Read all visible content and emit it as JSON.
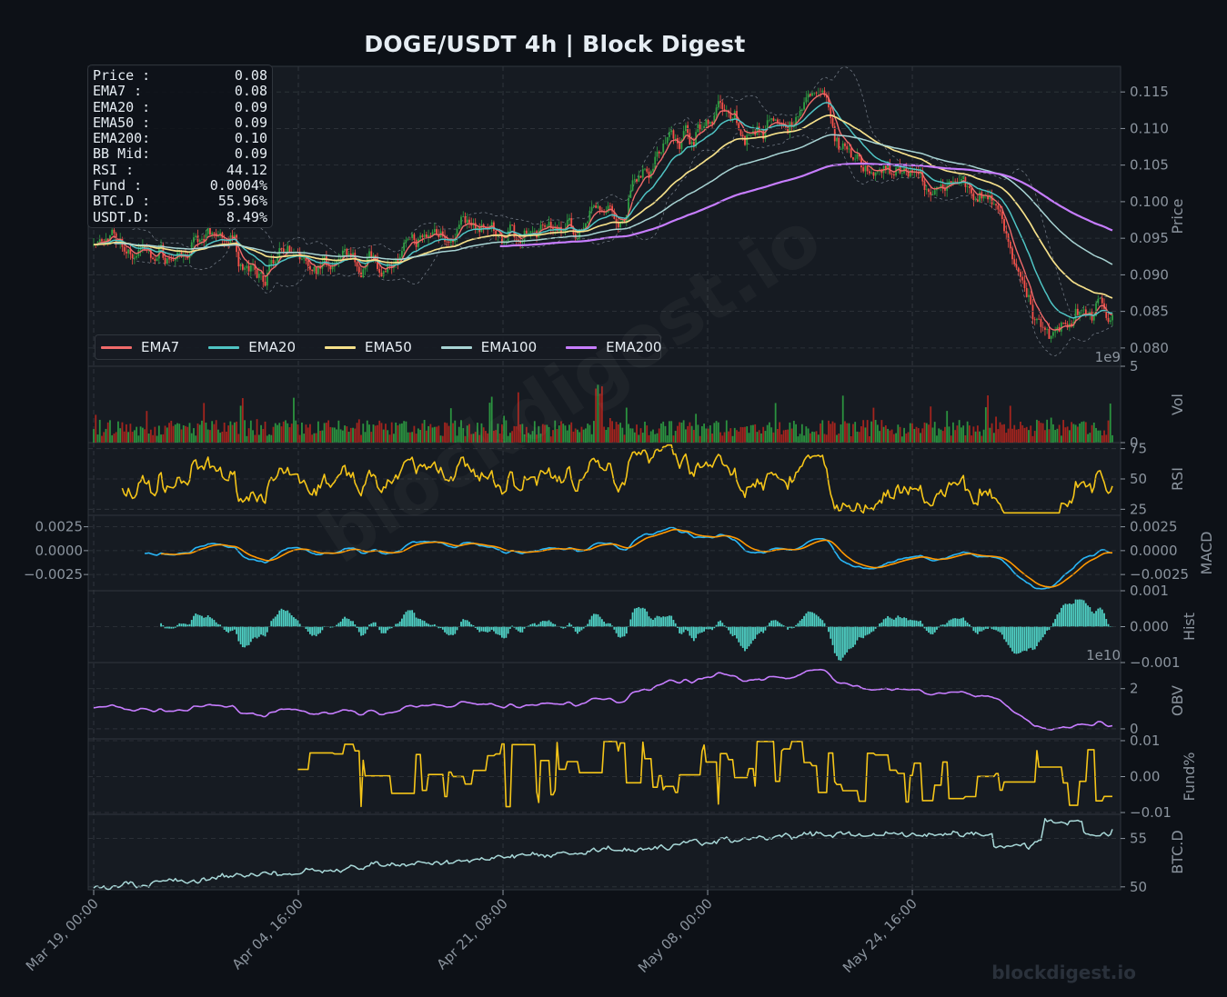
{
  "title": "DOGE/USDT  4h  |  Block Digest",
  "watermark": "blockdigest.io",
  "brand": "blockdigest.io",
  "info_box": [
    {
      "label": "Price :",
      "value": "0.08"
    },
    {
      "label": "EMA7  :",
      "value": "0.08"
    },
    {
      "label": "EMA20 :",
      "value": "0.09"
    },
    {
      "label": "EMA50 :",
      "value": "0.09"
    },
    {
      "label": "EMA200:",
      "value": "0.10"
    },
    {
      "label": "BB Mid:",
      "value": "0.09"
    },
    {
      "label": "RSI   :",
      "value": "44.12"
    },
    {
      "label": "Fund  :",
      "value": "0.0004%"
    },
    {
      "label": "BTC.D :",
      "value": "55.96%"
    },
    {
      "label": "USDT.D:",
      "value": "8.49%"
    }
  ],
  "legend": [
    {
      "name": "EMA7",
      "color": "#f06a6a"
    },
    {
      "name": "EMA20",
      "color": "#4fc4c4"
    },
    {
      "name": "EMA50",
      "color": "#f5e08a"
    },
    {
      "name": "EMA100",
      "color": "#a8d4d4"
    },
    {
      "name": "EMA200",
      "color": "#c77dff"
    }
  ],
  "colors": {
    "background": "#0d1117",
    "panel": "#161b22",
    "grid": "#30363d",
    "text": "#8b949e",
    "candle_up": "#2ea043",
    "candle_down": "#f85149",
    "rsi": "#f5c518",
    "macd": "#29b6f6",
    "signal": "#ff9800",
    "hist": "#4fd1c5",
    "obv": "#c77dff",
    "fund": "#f5c518",
    "btcd": "#a8d8d8"
  },
  "chart_data": {
    "type": "line",
    "x_ticks": [
      "Mar 19, 00:00",
      "Apr 04, 16:00",
      "Apr 21, 08:00",
      "May 08, 00:00",
      "May 24, 16:00"
    ],
    "x_range": [
      "Mar 19, 00:00",
      "Jun 10, 00:00"
    ],
    "panels": [
      {
        "name": "price",
        "ylabel": "Price",
        "ylim": [
          0.0775,
          0.1185
        ],
        "yticks": [
          "0.080",
          "0.085",
          "0.090",
          "0.095",
          "0.100",
          "0.105",
          "0.110",
          "0.115"
        ],
        "anchors": [
          [
            0,
            0.0945
          ],
          [
            4,
            0.093
          ],
          [
            8,
            0.0925
          ],
          [
            11,
            0.094
          ],
          [
            13,
            0.095
          ],
          [
            15,
            0.0915
          ],
          [
            20,
            0.091
          ],
          [
            25,
            0.0915
          ],
          [
            30,
            0.0922
          ],
          [
            33,
            0.0948
          ],
          [
            36,
            0.0975
          ],
          [
            38,
            0.095
          ],
          [
            42,
            0.0955
          ],
          [
            47,
            0.097
          ],
          [
            50,
            0.0975
          ],
          [
            52,
            0.098
          ],
          [
            53,
            0.1045
          ],
          [
            55,
            0.1065
          ],
          [
            57,
            0.109
          ],
          [
            60,
            0.11
          ],
          [
            61.5,
            0.1145
          ],
          [
            63.5,
            0.1095
          ],
          [
            66,
            0.1095
          ],
          [
            68,
            0.11
          ],
          [
            70.5,
            0.115
          ],
          [
            72,
            0.112
          ],
          [
            74,
            0.106
          ],
          [
            76,
            0.104
          ],
          [
            78,
            0.105
          ],
          [
            80,
            0.1025
          ],
          [
            83,
            0.1015
          ],
          [
            86,
            0.1015
          ],
          [
            88,
            0.1005
          ],
          [
            89,
            0.0985
          ],
          [
            90.5,
            0.092
          ],
          [
            92,
            0.084
          ],
          [
            93.5,
            0.0805
          ],
          [
            95,
            0.0845
          ],
          [
            97,
            0.0865
          ],
          [
            99,
            0.085
          ],
          [
            100,
            0.0845
          ]
        ],
        "series": [
          {
            "name": "EMA7",
            "values_note": "fast EMA"
          },
          {
            "name": "EMA20",
            "values_note": "EMA"
          },
          {
            "name": "EMA50",
            "values_note": "EMA"
          },
          {
            "name": "EMA100",
            "values_note": "EMA"
          },
          {
            "name": "EMA200",
            "values_note": "EMA"
          }
        ],
        "last": {
          "EMA50": 0.0878,
          "EMA100": 0.0923,
          "EMA200": 0.0968
        }
      },
      {
        "name": "volume",
        "ylabel": "Vol",
        "ylim": [
          0,
          5
        ],
        "yticks": [
          "0",
          "5"
        ],
        "offset_label": "1e9"
      },
      {
        "name": "rsi",
        "ylabel": "RSI",
        "ylim": [
          20,
          80
        ],
        "yticks": [
          "25",
          "50",
          "75"
        ],
        "last": 44.12
      },
      {
        "name": "macd",
        "ylabel": "MACD",
        "ylim": [
          -0.0042,
          0.0037
        ],
        "yticks": [
          "−0.0025",
          "0.0000",
          "0.0025"
        ]
      },
      {
        "name": "hist",
        "ylabel": "Hist",
        "ylim": [
          -0.001,
          0.001
        ],
        "yticks": [
          "−0.001",
          "0.000",
          "0.001"
        ],
        "offset_label": "1e10"
      },
      {
        "name": "obv",
        "ylabel": "OBV",
        "ylim": [
          -0.5,
          3.3
        ],
        "yticks": [
          "0",
          "2"
        ]
      },
      {
        "name": "fund",
        "ylabel": "Fund%",
        "ylim": [
          -0.0105,
          0.0105
        ],
        "yticks": [
          "−0.01",
          "0.00",
          "0.01"
        ]
      },
      {
        "name": "btcd",
        "ylabel": "BTC.D",
        "ylim": [
          49.7,
          57.5
        ],
        "yticks": [
          "50",
          "55"
        ],
        "last": 55.96
      }
    ]
  }
}
